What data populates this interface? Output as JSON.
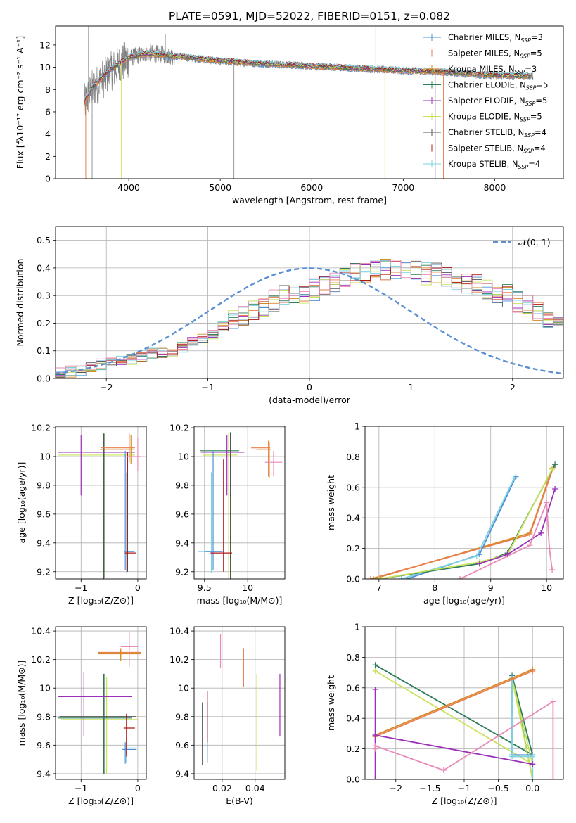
{
  "figure_title": "PLATE=0591, MJD=52022, FIBERID=0151, z=0.082",
  "colors": {
    "Chabrier MILES": "#4c8fd6",
    "Salpeter MILES": "#e87e4b",
    "Kroupa MILES": "#d88a2a",
    "Chabrier ELODIE": "#2e7d5a",
    "Salpeter ELODIE": "#9b30b8",
    "Kroupa ELODIE": "#c8e35a",
    "Chabrier STELIB": "#555555",
    "Salpeter STELIB": "#b01818",
    "Kroupa STELIB": "#7fd3e0",
    "Salpeter STELIB (pink)": "#e98ab8",
    "normal": "#5b8fd6",
    "grid": "#b0b0b0"
  },
  "chart_data": [
    {
      "id": "spectrum",
      "type": "line",
      "xlabel": "wavelength [Angstrom, rest frame]",
      "ylabel": "Flux [fλ10⁻¹⁷ erg cm⁻² s⁻¹ A⁻¹]",
      "xlim": [
        3200,
        8750
      ],
      "ylim": [
        0,
        13.7
      ],
      "xticks": [
        4000,
        5000,
        6000,
        7000,
        8000
      ],
      "yticks": [
        0,
        2,
        4,
        6,
        8,
        10,
        12
      ],
      "grid": false,
      "legend_position": "top-right",
      "legend": [
        {
          "label": "Chabrier MILES, N_SSP=3",
          "color": "#4c8fd6"
        },
        {
          "label": "Salpeter MILES, N_SSP=5",
          "color": "#e87e4b"
        },
        {
          "label": "Kroupa MILES, N_SSP=3",
          "color": "#d88a2a"
        },
        {
          "label": "Chabrier ELODIE, N_SSP=5",
          "color": "#2e7d5a"
        },
        {
          "label": "Salpeter ELODIE, N_SSP=5",
          "color": "#9b30b8"
        },
        {
          "label": "Kroupa ELODIE, N_SSP=5",
          "color": "#c8e35a"
        },
        {
          "label": "Chabrier STELIB, N_SSP=4",
          "color": "#555555"
        },
        {
          "label": "Salpeter STELIB, N_SSP=4",
          "color": "#b01818"
        },
        {
          "label": "Kroupa STELIB, N_SSP=4",
          "color": "#7fd3e0"
        }
      ],
      "data_trend": {
        "x": [
          3500,
          3600,
          3800,
          4000,
          4200,
          4500,
          5000,
          5500,
          6000,
          6500,
          7000,
          7400,
          8000,
          8400
        ],
        "y": [
          6.5,
          8.0,
          9.6,
          10.8,
          11.3,
          11.0,
          10.5,
          10.3,
          10.1,
          9.9,
          9.7,
          9.6,
          9.2,
          9.2
        ]
      },
      "model_trend": {
        "x": [
          3500,
          3600,
          3800,
          4000,
          4200,
          4500,
          5000,
          5500,
          6000,
          6500,
          7000,
          7400,
          8000,
          8400
        ],
        "y": [
          6.6,
          8.2,
          9.8,
          10.9,
          11.2,
          11.0,
          10.6,
          10.3,
          10.1,
          9.9,
          9.7,
          9.6,
          9.3,
          9.2
        ]
      }
    },
    {
      "id": "residuals",
      "type": "line",
      "xlabel": "(data-model)/error",
      "ylabel": "Normed distribution",
      "xlim": [
        -2.5,
        2.5
      ],
      "ylim": [
        0,
        0.55
      ],
      "xticks": [
        -2,
        -1,
        0,
        1,
        2
      ],
      "yticks": [
        0.0,
        0.1,
        0.2,
        0.3,
        0.4,
        0.5
      ],
      "grid": true,
      "legend_position": "top-right",
      "legend": [
        {
          "label": "𝒩(0, 1)",
          "color": "#5b8fd6"
        }
      ],
      "histogram_bin_width": 0.1,
      "histogram_start": -2.5,
      "histogram_base": [
        0.02,
        0.025,
        0.03,
        0.04,
        0.05,
        0.06,
        0.06,
        0.07,
        0.08,
        0.09,
        0.09,
        0.1,
        0.11,
        0.13,
        0.14,
        0.16,
        0.19,
        0.21,
        0.22,
        0.24,
        0.26,
        0.28,
        0.3,
        0.31,
        0.31,
        0.32,
        0.34,
        0.35,
        0.37,
        0.38,
        0.38,
        0.4,
        0.39,
        0.4,
        0.39,
        0.4,
        0.38,
        0.38,
        0.37,
        0.36,
        0.35,
        0.34,
        0.33,
        0.31,
        0.3,
        0.28,
        0.26,
        0.24,
        0.22,
        0.2,
        0.17,
        0.15,
        0.13,
        0.11,
        0.1,
        0.09,
        0.08,
        0.07,
        0.06,
        0.05,
        0.04,
        0.035,
        0.03,
        0.025,
        0.02,
        0.02,
        0.02,
        0.02,
        0.02,
        0.015
      ],
      "normal_curve": {
        "mu": 0,
        "sigma": 1
      }
    },
    {
      "id": "age-vs-Z",
      "type": "scatter",
      "xlabel": "Z [log₁₀(Z/Z⊙)]",
      "ylabel": "age  [log₁₀(age/yr)]",
      "xlim": [
        -1.45,
        0.15
      ],
      "ylim": [
        9.15,
        10.21
      ],
      "xticks": [
        -1,
        0
      ],
      "yticks": [
        9.2,
        9.4,
        9.6,
        9.8,
        10.0,
        10.2
      ],
      "grid": true,
      "points": [
        {
          "x": -0.6,
          "y": 10.01,
          "xerr": [
            0.8,
            0.55
          ],
          "yerr": [
            0.85,
            0.15
          ],
          "color": "#c8e35a"
        },
        {
          "x": -0.58,
          "y": 10.03,
          "xerr": [
            0.8,
            0.52
          ],
          "yerr": [
            0.87,
            0.13
          ],
          "color": "#2e7d5a"
        },
        {
          "x": -0.6,
          "y": 10.03,
          "xerr": [
            0.8,
            0.55
          ],
          "yerr": [
            0.88,
            0.13
          ],
          "color": "#555555"
        },
        {
          "x": -1.0,
          "y": 10.03,
          "xerr": [
            0.4,
            0.9
          ],
          "yerr": [
            0.3,
            0.12
          ],
          "color": "#9b30b8"
        },
        {
          "x": -0.15,
          "y": 10.06,
          "xerr": [
            0.5,
            0.1
          ],
          "yerr": [
            0.1,
            0.1
          ],
          "color": "#e87e4b"
        },
        {
          "x": -0.12,
          "y": 10.05,
          "xerr": [
            0.55,
            0.05
          ],
          "yerr": [
            0.1,
            0.1
          ],
          "color": "#d88a2a"
        },
        {
          "x": -0.2,
          "y": 9.34,
          "xerr": [
            0.04,
            0.15
          ],
          "yerr": [
            0.15,
            0.55
          ],
          "color": "#7fd3e0"
        },
        {
          "x": -0.22,
          "y": 9.34,
          "xerr": [
            0.02,
            0.15
          ],
          "yerr": [
            0.13,
            0.7
          ],
          "color": "#4c8fd6"
        },
        {
          "x": -0.18,
          "y": 9.33,
          "xerr": [
            0.05,
            0.15
          ],
          "yerr": [
            0.13,
            0.7
          ],
          "color": "#b01818"
        },
        {
          "x": 0.0,
          "y": 10.0,
          "xerr": [
            0.2,
            0.05
          ],
          "yerr": [
            0.1,
            0.13
          ],
          "color": "#e98ab8"
        }
      ]
    },
    {
      "id": "age-vs-mass",
      "type": "scatter",
      "xlabel": "mass [log₁₀(M/M⊙)]",
      "ylabel": "",
      "xlim": [
        9.38,
        10.43
      ],
      "ylim": [
        9.15,
        10.21
      ],
      "xticks": [
        9.5,
        10.0
      ],
      "yticks": [
        9.2,
        9.4,
        9.6,
        9.8,
        10.0,
        10.2
      ],
      "grid": true,
      "points": [
        {
          "x": 9.78,
          "y": 10.01,
          "xerr": [
            0.3,
            0.1
          ],
          "yerr": [
            0.85,
            0.15
          ],
          "color": "#c8e35a"
        },
        {
          "x": 9.8,
          "y": 10.04,
          "xerr": [
            0.35,
            0.1
          ],
          "yerr": [
            0.87,
            0.13
          ],
          "color": "#2e7d5a"
        },
        {
          "x": 9.8,
          "y": 10.03,
          "xerr": [
            0.3,
            0.1
          ],
          "yerr": [
            0.88,
            0.13
          ],
          "color": "#555555"
        },
        {
          "x": 9.76,
          "y": 10.03,
          "xerr": [
            0.3,
            0.2
          ],
          "yerr": [
            0.3,
            0.12
          ],
          "color": "#9b30b8"
        },
        {
          "x": 10.24,
          "y": 10.06,
          "xerr": [
            0.2,
            0.02
          ],
          "yerr": [
            0.2,
            0.05
          ],
          "color": "#e87e4b"
        },
        {
          "x": 10.25,
          "y": 10.05,
          "xerr": [
            0.15,
            0.02
          ],
          "yerr": [
            0.2,
            0.05
          ],
          "color": "#d88a2a"
        },
        {
          "x": 9.58,
          "y": 9.34,
          "xerr": [
            0.15,
            0.15
          ],
          "yerr": [
            0.15,
            0.55
          ],
          "color": "#7fd3e0"
        },
        {
          "x": 9.6,
          "y": 9.34,
          "xerr": [
            0.1,
            0.1
          ],
          "yerr": [
            0.13,
            0.7
          ],
          "color": "#4c8fd6"
        },
        {
          "x": 9.72,
          "y": 9.33,
          "xerr": [
            0.15,
            0.1
          ],
          "yerr": [
            0.13,
            0.65
          ],
          "color": "#b01818"
        },
        {
          "x": 10.3,
          "y": 9.96,
          "xerr": [
            0.1,
            0.1
          ],
          "yerr": [
            0.1,
            0.08
          ],
          "color": "#e98ab8"
        }
      ]
    },
    {
      "id": "weight-vs-age",
      "type": "line",
      "xlabel": "age  [log₁₀(age/yr)]",
      "ylabel": "mass weight",
      "xlim": [
        6.75,
        10.3
      ],
      "ylim": [
        0,
        1.0
      ],
      "xticks": [
        7,
        8,
        9,
        10
      ],
      "yticks": [
        0.0,
        0.2,
        0.4,
        0.6,
        0.8,
        1.0
      ],
      "grid": true,
      "series": [
        {
          "color": "#d88a2a",
          "x": [
            6.9,
            9.7,
            10.1
          ],
          "y": [
            0.0,
            0.3,
            0.72
          ]
        },
        {
          "color": "#e87e4b",
          "x": [
            6.85,
            9.7,
            10.12
          ],
          "y": [
            0.0,
            0.29,
            0.73
          ]
        },
        {
          "color": "#4c8fd6",
          "x": [
            7.5,
            8.8,
            9.45
          ],
          "y": [
            0.0,
            0.16,
            0.67
          ]
        },
        {
          "color": "#7fd3e0",
          "x": [
            7.4,
            8.75,
            9.42
          ],
          "y": [
            0.0,
            0.15,
            0.66
          ]
        },
        {
          "color": "#2e7d5a",
          "x": [
            7.0,
            8.8,
            9.3,
            10.15
          ],
          "y": [
            0.0,
            0.1,
            0.17,
            0.75
          ]
        },
        {
          "color": "#c8e35a",
          "x": [
            7.0,
            8.8,
            9.3,
            10.1
          ],
          "y": [
            0.0,
            0.11,
            0.16,
            0.72
          ]
        },
        {
          "color": "#9b30b8",
          "x": [
            8.8,
            9.3,
            9.9,
            10.15
          ],
          "y": [
            0.1,
            0.16,
            0.3,
            0.59
          ]
        },
        {
          "color": "#e98ab8",
          "x": [
            8.45,
            9.7,
            10.0,
            10.05,
            10.1
          ],
          "y": [
            0.0,
            0.22,
            0.5,
            0.2,
            0.06
          ]
        }
      ]
    },
    {
      "id": "mass-vs-Z",
      "type": "scatter",
      "xlabel": "Z [log₁₀(Z/Z⊙)]",
      "ylabel": "mass [log₁₀(M/M⊙)]",
      "xlim": [
        -1.45,
        0.15
      ],
      "ylim": [
        9.36,
        10.43
      ],
      "xticks": [
        -1,
        0
      ],
      "yticks": [
        9.4,
        9.6,
        9.8,
        10.0,
        10.2,
        10.4
      ],
      "grid": true,
      "points": [
        {
          "x": -0.55,
          "y": 9.78,
          "xerr": [
            0.8,
            0.55
          ],
          "yerr": [
            0.38,
            0.3
          ],
          "color": "#c8e35a"
        },
        {
          "x": -0.6,
          "y": 9.79,
          "xerr": [
            0.8,
            0.5
          ],
          "yerr": [
            0.39,
            0.31
          ],
          "color": "#2e7d5a"
        },
        {
          "x": -0.58,
          "y": 9.8,
          "xerr": [
            0.8,
            0.55
          ],
          "yerr": [
            0.4,
            0.3
          ],
          "color": "#555555"
        },
        {
          "x": -0.95,
          "y": 9.94,
          "xerr": [
            0.45,
            0.85
          ],
          "yerr": [
            0.28,
            0.17
          ],
          "color": "#9b30b8"
        },
        {
          "x": -0.3,
          "y": 10.25,
          "xerr": [
            0.4,
            0.35
          ],
          "yerr": [
            0.05,
            0.03
          ],
          "color": "#e87e4b"
        },
        {
          "x": -0.3,
          "y": 10.24,
          "xerr": [
            0.4,
            0.35
          ],
          "yerr": [
            0.05,
            0.03
          ],
          "color": "#d88a2a"
        },
        {
          "x": -0.2,
          "y": 9.58,
          "xerr": [
            0.05,
            0.2
          ],
          "yerr": [
            0.1,
            0.05
          ],
          "color": "#7fd3e0"
        },
        {
          "x": -0.22,
          "y": 9.57,
          "xerr": [
            0.05,
            0.2
          ],
          "yerr": [
            0.1,
            0.05
          ],
          "color": "#4c8fd6"
        },
        {
          "x": -0.2,
          "y": 9.72,
          "xerr": [
            0.05,
            0.15
          ],
          "yerr": [
            0.2,
            0.1
          ],
          "color": "#b01818"
        },
        {
          "x": -0.15,
          "y": 10.29,
          "xerr": [
            0.15,
            0.15
          ],
          "yerr": [
            0.14,
            0.1
          ],
          "color": "#e98ab8"
        }
      ]
    },
    {
      "id": "mass-vs-ebv",
      "type": "scatter",
      "xlabel": "E(B-V)",
      "ylabel": "",
      "xlim": [
        0.003,
        0.058
      ],
      "ylim": [
        9.36,
        10.43
      ],
      "xticks": [
        0.02,
        0.04
      ],
      "yticks": [
        9.4,
        9.6,
        9.8,
        10.0,
        10.2,
        10.4
      ],
      "grid": true,
      "points": [
        {
          "x": 0.008,
          "y": 9.68,
          "xerr": [
            0.0,
            0.0
          ],
          "yerr": [
            0.22,
            0.22
          ],
          "color": "#555555"
        },
        {
          "x": 0.011,
          "y": 9.7,
          "xerr": [
            0.0,
            0.0
          ],
          "yerr": [
            0.22,
            0.2
          ],
          "color": "#4c8fd6"
        },
        {
          "x": 0.011,
          "y": 9.77,
          "xerr": [
            0.0,
            0.0
          ],
          "yerr": [
            0.15,
            0.21
          ],
          "color": "#b01818"
        },
        {
          "x": 0.019,
          "y": 10.26,
          "xerr": [
            0.0,
            0.0
          ],
          "yerr": [
            0.12,
            0.12
          ],
          "color": "#e98ab8"
        },
        {
          "x": 0.033,
          "y": 10.14,
          "xerr": [
            0.0,
            0.0
          ],
          "yerr": [
            0.13,
            0.14
          ],
          "color": "#e87e4b"
        },
        {
          "x": 0.041,
          "y": 9.76,
          "xerr": [
            0.0,
            0.0
          ],
          "yerr": [
            0.34,
            0.34
          ],
          "color": "#c8e35a"
        },
        {
          "x": 0.055,
          "y": 9.88,
          "xerr": [
            0.0,
            0.0
          ],
          "yerr": [
            0.22,
            0.22
          ],
          "color": "#9b30b8"
        }
      ]
    },
    {
      "id": "weight-vs-Z",
      "type": "line",
      "xlabel": "Z [log₁₀(Z/Z⊙)]",
      "ylabel": "mass weight",
      "xlim": [
        -2.45,
        0.45
      ],
      "ylim": [
        0,
        1.0
      ],
      "xticks": [
        -2.0,
        -1.5,
        -1.0,
        -0.5,
        0.0
      ],
      "yticks": [
        0.0,
        0.2,
        0.4,
        0.6,
        0.8,
        1.0
      ],
      "grid": true,
      "series": [
        {
          "color": "#2e7d5a",
          "x": [
            -2.3,
            0.0,
            -0.3,
            0.0
          ],
          "y": [
            0.75,
            0.16,
            0.68,
            0.0
          ]
        },
        {
          "color": "#c8e35a",
          "x": [
            -2.3,
            0.0,
            -0.3,
            0.0
          ],
          "y": [
            0.71,
            0.1,
            0.66,
            0.0
          ]
        },
        {
          "color": "#4c8fd6",
          "x": [
            -0.3,
            -0.3,
            0.0,
            0.0
          ],
          "y": [
            0.67,
            0.16,
            0.16,
            0.0
          ]
        },
        {
          "color": "#7fd3e0",
          "x": [
            -0.3,
            -0.3,
            0.0,
            0.0
          ],
          "y": [
            0.66,
            0.15,
            0.15,
            0.0
          ]
        },
        {
          "color": "#d88a2a",
          "x": [
            -2.3,
            0.0
          ],
          "y": [
            0.29,
            0.72
          ]
        },
        {
          "color": "#e87e4b",
          "x": [
            -2.3,
            0.0
          ],
          "y": [
            0.28,
            0.71
          ]
        },
        {
          "color": "#9b30b8",
          "x": [
            -2.3,
            -2.3,
            -2.3,
            0.0
          ],
          "y": [
            0.59,
            0.0,
            0.29,
            0.1
          ]
        },
        {
          "color": "#e98ab8",
          "x": [
            -2.3,
            -2.3,
            -1.3,
            0.3,
            0.3
          ],
          "y": [
            0.2,
            0.22,
            0.06,
            0.51,
            0.0
          ]
        }
      ]
    }
  ]
}
